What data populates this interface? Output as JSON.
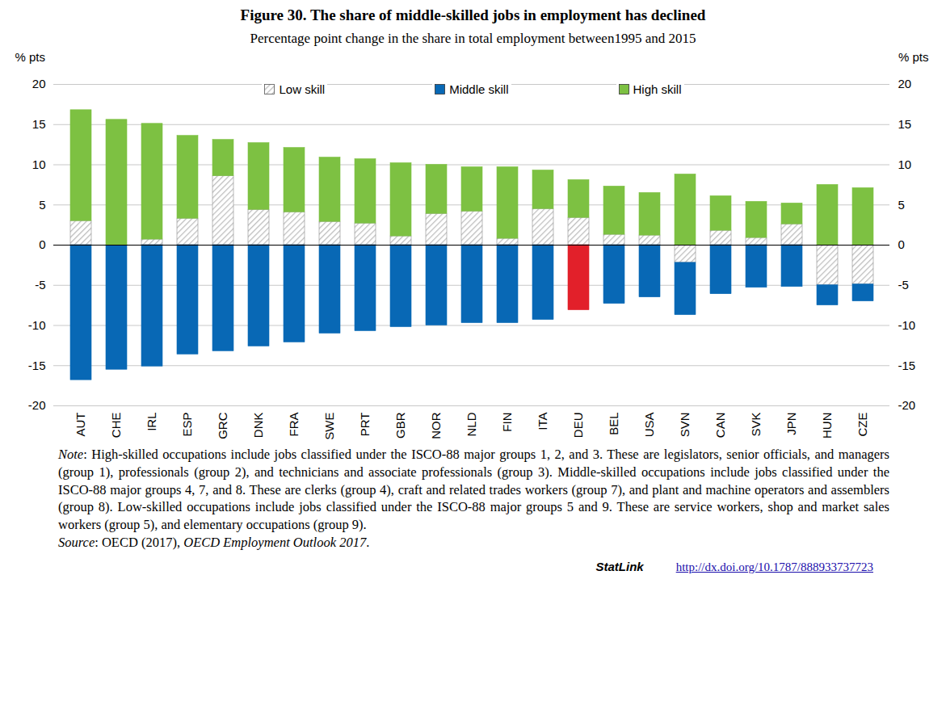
{
  "chart_data": {
    "type": "bar",
    "title": "Figure 30. The share of middle-skilled jobs in employment has declined",
    "subtitle": "Percentage point change in the share in total employment between1995 and 2015",
    "y_label": "% pts",
    "y2_label": "% pts",
    "categories": [
      "AUT",
      "CHE",
      "IRL",
      "ESP",
      "GRC",
      "DNK",
      "FRA",
      "SWE",
      "PRT",
      "GBR",
      "NOR",
      "NLD",
      "FIN",
      "ITA",
      "DEU",
      "BEL",
      "USA",
      "SVN",
      "CAN",
      "SVK",
      "JPN",
      "HUN",
      "CZE"
    ],
    "series": [
      {
        "name": "Low skill",
        "color": "#bdbdbd",
        "values": [
          3.0,
          0.0,
          0.7,
          3.3,
          8.6,
          4.4,
          4.1,
          2.9,
          2.7,
          1.1,
          3.9,
          4.2,
          0.8,
          4.5,
          3.4,
          1.3,
          1.2,
          -2.2,
          1.8,
          0.9,
          2.6,
          -5.0,
          -4.9
        ]
      },
      {
        "name": "Middle skill",
        "color": "#0868b5",
        "colors": [
          "#0868b5",
          "#0868b5",
          "#0868b5",
          "#0868b5",
          "#0868b5",
          "#0868b5",
          "#0868b5",
          "#0868b5",
          "#0868b5",
          "#0868b5",
          "#0868b5",
          "#0868b5",
          "#0868b5",
          "#0868b5",
          "#e2202a",
          "#0868b5",
          "#0868b5",
          "#0868b5",
          "#0868b5",
          "#0868b5",
          "#0868b5",
          "#0868b5",
          "#0868b5"
        ],
        "values": [
          -16.8,
          -15.5,
          -15.1,
          -13.6,
          -13.2,
          -12.6,
          -12.1,
          -11.0,
          -10.7,
          -10.2,
          -10.0,
          -9.7,
          -9.7,
          -9.3,
          -8.1,
          -7.3,
          -6.5,
          -6.5,
          -6.1,
          -5.3,
          -5.2,
          -2.5,
          -2.1
        ]
      },
      {
        "name": "High skill",
        "color": "#7dc142",
        "values": [
          13.8,
          15.6,
          14.4,
          10.3,
          4.5,
          8.3,
          8.0,
          8.0,
          8.0,
          9.1,
          6.1,
          5.5,
          8.9,
          4.8,
          4.7,
          6.0,
          5.3,
          8.8,
          4.3,
          4.5,
          2.6,
          7.5,
          7.1
        ]
      }
    ],
    "stacked": true,
    "ylim": [
      -20,
      20
    ],
    "yticks": [
      -20,
      -15,
      -10,
      -5,
      0,
      5,
      10,
      15,
      20
    ],
    "y2lim": [
      -20,
      20
    ],
    "y2ticks": [
      -20,
      -15,
      -10,
      -5,
      0,
      5,
      10,
      15,
      20
    ],
    "grid": true,
    "legend": "top",
    "note_label": "Note",
    "note": ": High-skilled occupations include jobs classified under the ISCO-88 major groups 1, 2, and 3. These are legislators, senior officials, and managers (group 1), professionals (group 2), and technicians and associate professionals (group 3). Middle-skilled occupations include jobs classified under the ISCO-88 major groups 4, 7, and 8. These are clerks (group 4), craft and related trades workers (group 7), and plant and machine operators and assemblers (group 8). Low-skilled occupations include jobs classified under the ISCO-88 major groups 5 and 9. These are service workers, shop and market sales workers (group 5), and elementary occupations (group 9).",
    "source_label": "Source",
    "source_parts": [
      ": OECD (2017), ",
      "OECD Employment Outlook 2017",
      "."
    ],
    "statlink": "StatLink",
    "url": "http://dx.doi.org/10.1787/888933737723"
  }
}
